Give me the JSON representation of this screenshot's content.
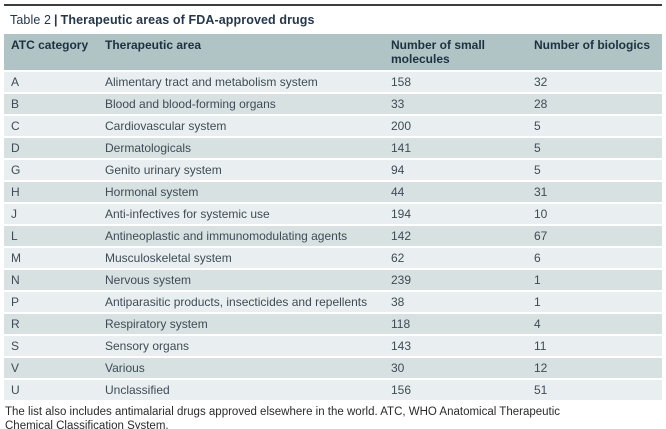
{
  "table": {
    "title_prefix": "Table 2",
    "title_separator": "|",
    "title_text": "Therapeutic areas of FDA-approved drugs",
    "columns": {
      "atc": "ATC category",
      "area": "Therapeutic area",
      "small_molecules": "Number of small molecules",
      "biologics": "Number of biologics"
    },
    "rows": [
      {
        "atc": "A",
        "area": "Alimentary tract and metabolism system",
        "small_molecules": "158",
        "biologics": "32"
      },
      {
        "atc": "B",
        "area": "Blood and blood-forming organs",
        "small_molecules": "33",
        "biologics": "28"
      },
      {
        "atc": "C",
        "area": "Cardiovascular system",
        "small_molecules": "200",
        "biologics": "5"
      },
      {
        "atc": "D",
        "area": "Dermatologicals",
        "small_molecules": "141",
        "biologics": "5"
      },
      {
        "atc": "G",
        "area": "Genito urinary system",
        "small_molecules": "94",
        "biologics": "5"
      },
      {
        "atc": "H",
        "area": "Hormonal system",
        "small_molecules": "44",
        "biologics": "31"
      },
      {
        "atc": "J",
        "area": "Anti-infectives for systemic use",
        "small_molecules": "194",
        "biologics": "10"
      },
      {
        "atc": "L",
        "area": "Antineoplastic and immunomodulating agents",
        "small_molecules": "142",
        "biologics": "67"
      },
      {
        "atc": "M",
        "area": "Musculoskeletal system",
        "small_molecules": "62",
        "biologics": "6"
      },
      {
        "atc": "N",
        "area": "Nervous system",
        "small_molecules": "239",
        "biologics": "1"
      },
      {
        "atc": "P",
        "area": "Antiparasitic products, insecticides and repellents",
        "small_molecules": "38",
        "biologics": "1"
      },
      {
        "atc": "R",
        "area": "Respiratory system",
        "small_molecules": "118",
        "biologics": "4"
      },
      {
        "atc": "S",
        "area": "Sensory organs",
        "small_molecules": "143",
        "biologics": "11"
      },
      {
        "atc": "V",
        "area": "Various",
        "small_molecules": "30",
        "biologics": "12"
      },
      {
        "atc": "U",
        "area": "Unclassified",
        "small_molecules": "156",
        "biologics": "51"
      }
    ],
    "footnote": "The list also includes antimalarial drugs approved elsewhere in the world. ATC, WHO Anatomical Therapeutic Chemical Classification System."
  },
  "colors": {
    "header_bg": "#b0c3c5",
    "row_light": "#e9eff0",
    "row_dark": "#d7e1e2",
    "title_text": "#24374a",
    "header_text": "#1d3140",
    "body_text": "#3f4b55",
    "top_rule": "#3d3d3d"
  }
}
